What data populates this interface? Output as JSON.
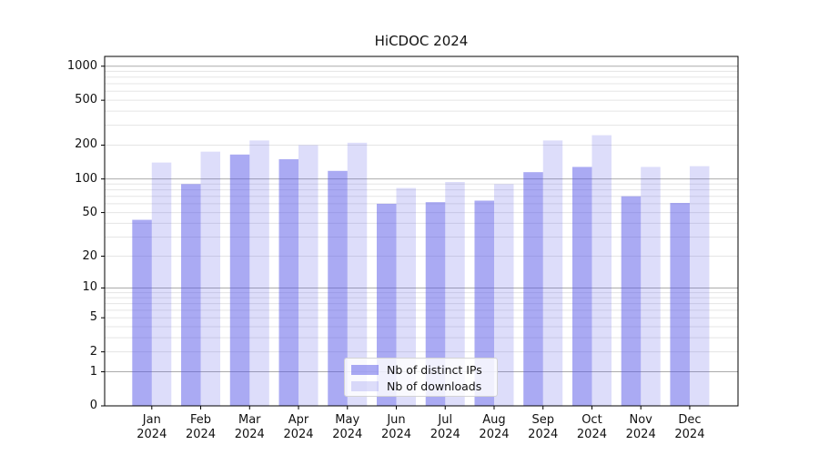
{
  "title": "HiCDOC 2024",
  "chart_data": {
    "type": "bar",
    "title": "HiCDOC 2024",
    "categories": [
      "Jan 2024",
      "Feb 2024",
      "Mar 2024",
      "Apr 2024",
      "May 2024",
      "Jun 2024",
      "Jul 2024",
      "Aug 2024",
      "Sep 2024",
      "Oct 2024",
      "Nov 2024",
      "Dec 2024"
    ],
    "series": [
      {
        "name": "Nb of distinct IPs",
        "fill": "rgba(85,85,232,0.5)",
        "values": [
          43,
          90,
          165,
          150,
          118,
          60,
          62,
          64,
          115,
          128,
          70,
          61
        ]
      },
      {
        "name": "Nb of downloads",
        "fill": "rgba(85,85,232,0.2)",
        "values": [
          140,
          175,
          220,
          200,
          210,
          83,
          94,
          90,
          220,
          245,
          128,
          130
        ]
      }
    ],
    "xlabel": "",
    "ylabel": "",
    "yscale": "log1p",
    "ylim": [
      0,
      1220
    ],
    "yticks": [
      0,
      1,
      2,
      5,
      10,
      20,
      50,
      100,
      200,
      500,
      1000
    ],
    "grid": "on",
    "grid_major_color": "#ababab",
    "grid_minor_color": "#e5e5e5",
    "axis_color": "#000000",
    "legend_position": "lower center"
  }
}
